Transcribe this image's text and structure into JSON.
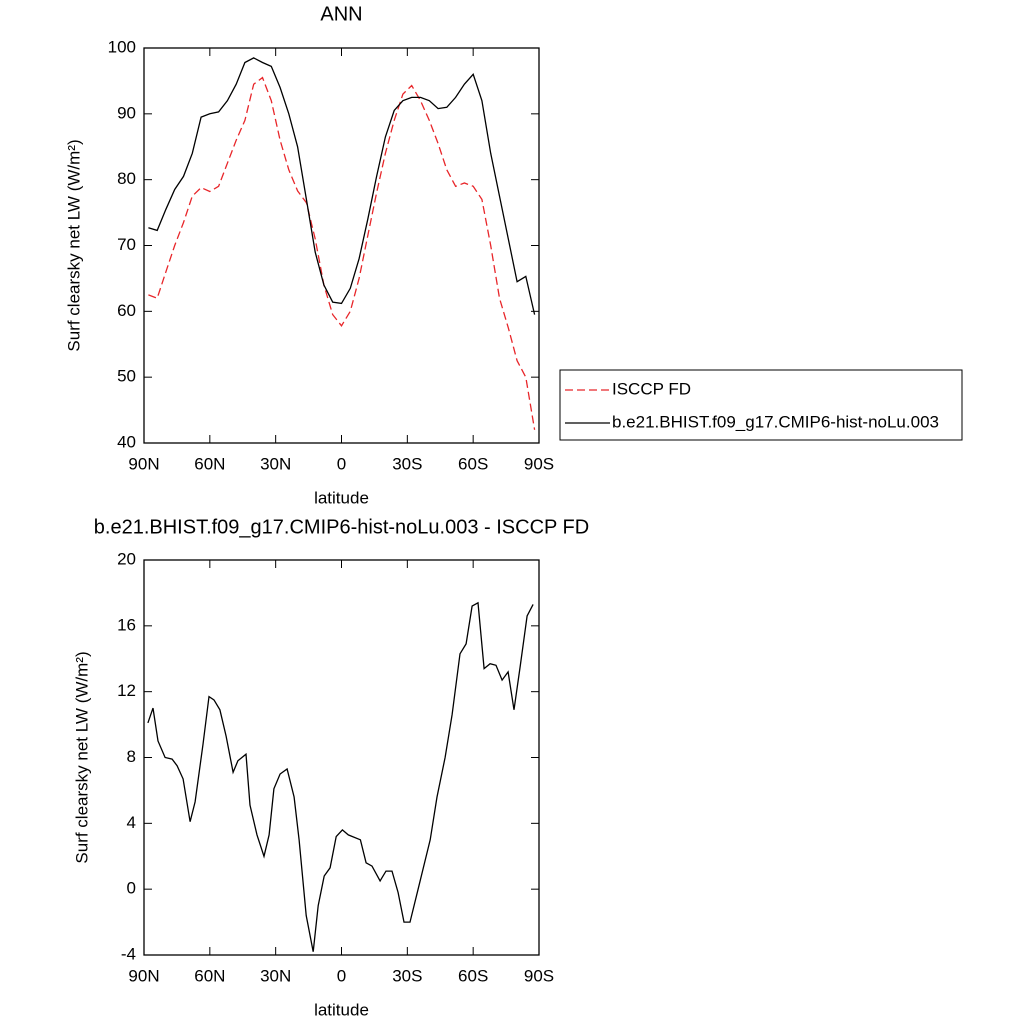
{
  "chart_data": [
    {
      "type": "line",
      "title": "ANN",
      "xlabel": "latitude",
      "ylabel": "Surf clearsky net LW (W/m²)",
      "x": [
        88,
        84,
        80,
        76,
        72,
        68,
        64,
        60,
        56,
        52,
        48,
        44,
        40,
        36,
        32,
        28,
        24,
        20,
        16,
        12,
        8,
        4,
        0,
        -4,
        -8,
        -12,
        -16,
        -20,
        -24,
        -28,
        -32,
        -36,
        -40,
        -44,
        -48,
        -52,
        -56,
        -60,
        -64,
        -68,
        -72,
        -76,
        -80,
        -84,
        -88
      ],
      "series": [
        {
          "name": "ISCCP FD",
          "color": "#e8262a",
          "linestyle": "dashed",
          "values": [
            62.5,
            62,
            66,
            70,
            73.5,
            77.5,
            78.8,
            78.2,
            79,
            82.5,
            86,
            89,
            94.5,
            95.5,
            92,
            86,
            81.5,
            78.3,
            76.5,
            71,
            64,
            59.5,
            57.8,
            60,
            65,
            71.5,
            78,
            84,
            89,
            93,
            94.3,
            92,
            89,
            85.5,
            81.5,
            79,
            79.5,
            79,
            77,
            70,
            62,
            57.5,
            52.5,
            50,
            42
          ]
        },
        {
          "name": "b.e21.BHIST.f09_g17.CMIP6-hist-noLu.003",
          "color": "#000000",
          "linestyle": "solid",
          "values": [
            72.7,
            72.3,
            75.5,
            78.5,
            80.5,
            84,
            89.5,
            90,
            90.3,
            92,
            94.5,
            97.8,
            98.5,
            97.8,
            97.2,
            94,
            90,
            85,
            77,
            69,
            64,
            61.4,
            61.2,
            63.5,
            68,
            74,
            80.5,
            86.5,
            90.5,
            92,
            92.5,
            92.5,
            92,
            90.8,
            91,
            92.5,
            94.5,
            96,
            92,
            84,
            77.5,
            71,
            64.5,
            65.3,
            59.5
          ]
        }
      ],
      "xlim": [
        90,
        -90
      ],
      "xticks": [
        {
          "value": 90,
          "label": "90N"
        },
        {
          "value": 60,
          "label": "60N"
        },
        {
          "value": 30,
          "label": "30N"
        },
        0,
        {
          "value": -30,
          "label": "30S"
        },
        {
          "value": -60,
          "label": "60S"
        },
        {
          "value": -90,
          "label": "90S"
        }
      ],
      "ylim": [
        40,
        100
      ],
      "yticks": [
        40,
        50,
        60,
        70,
        80,
        90,
        100
      ],
      "legend": "right"
    },
    {
      "type": "line",
      "title": "b.e21.BHIST.f09_g17.CMIP6-hist-noLu.003 - ISCCP FD",
      "xlabel": "latitude",
      "ylabel": "Surf clearsky net LW (W/m²)",
      "x": [
        88.2,
        85.9,
        83.6,
        80.4,
        77.2,
        74.9,
        72.2,
        69,
        66.7,
        63.1,
        60.4,
        58.1,
        55.4,
        52.6,
        49.4,
        47.2,
        43.5,
        41.7,
        38.5,
        35.3,
        33,
        30.8,
        28,
        24.8,
        21.6,
        19.3,
        16.1,
        12.9,
        10.6,
        7.9,
        5.2,
        2.4,
        -0.4,
        -3.1,
        -8.6,
        -11.2,
        -13.9,
        -17.6,
        -20.3,
        -23,
        -25.8,
        -28.5,
        -31.2,
        -34.9,
        -40.4,
        -43.5,
        -47.2,
        -50.4,
        -54,
        -56.8,
        -59.5,
        -62.2,
        -65,
        -67.7,
        -70.4,
        -73.2,
        -75.9,
        -78.6,
        -81.4,
        -84.6,
        -87.3
      ],
      "values": [
        10.1,
        11,
        9,
        8,
        7.9,
        7.5,
        6.7,
        4.1,
        5.3,
        8.8,
        11.7,
        11.5,
        10.9,
        9.3,
        7.1,
        7.8,
        8.2,
        5.1,
        3.3,
        2,
        3.3,
        6.1,
        7,
        7.3,
        5.6,
        3,
        -1.6,
        -3.8,
        -1,
        0.8,
        1.3,
        3.2,
        3.6,
        3.3,
        3,
        1.6,
        1.4,
        0.5,
        1.1,
        1.1,
        -0.2,
        -2,
        -2,
        0,
        3,
        5.6,
        8,
        10.6,
        14.3,
        14.9,
        17.2,
        17.4,
        13.4,
        13.7,
        13.6,
        12.7,
        13.2,
        10.9,
        13.5,
        16.6,
        17.3
      ],
      "color": "#000000",
      "xlim": [
        90,
        -90
      ],
      "xticks": [
        {
          "value": 90,
          "label": "90N"
        },
        {
          "value": 60,
          "label": "60N"
        },
        {
          "value": 30,
          "label": "30N"
        },
        0,
        {
          "value": -30,
          "label": "30S"
        },
        {
          "value": -60,
          "label": "60S"
        },
        {
          "value": -90,
          "label": "90S"
        }
      ],
      "ylim": [
        -4,
        20
      ],
      "yticks": [
        -4,
        0,
        4,
        8,
        12,
        16,
        20
      ]
    }
  ]
}
